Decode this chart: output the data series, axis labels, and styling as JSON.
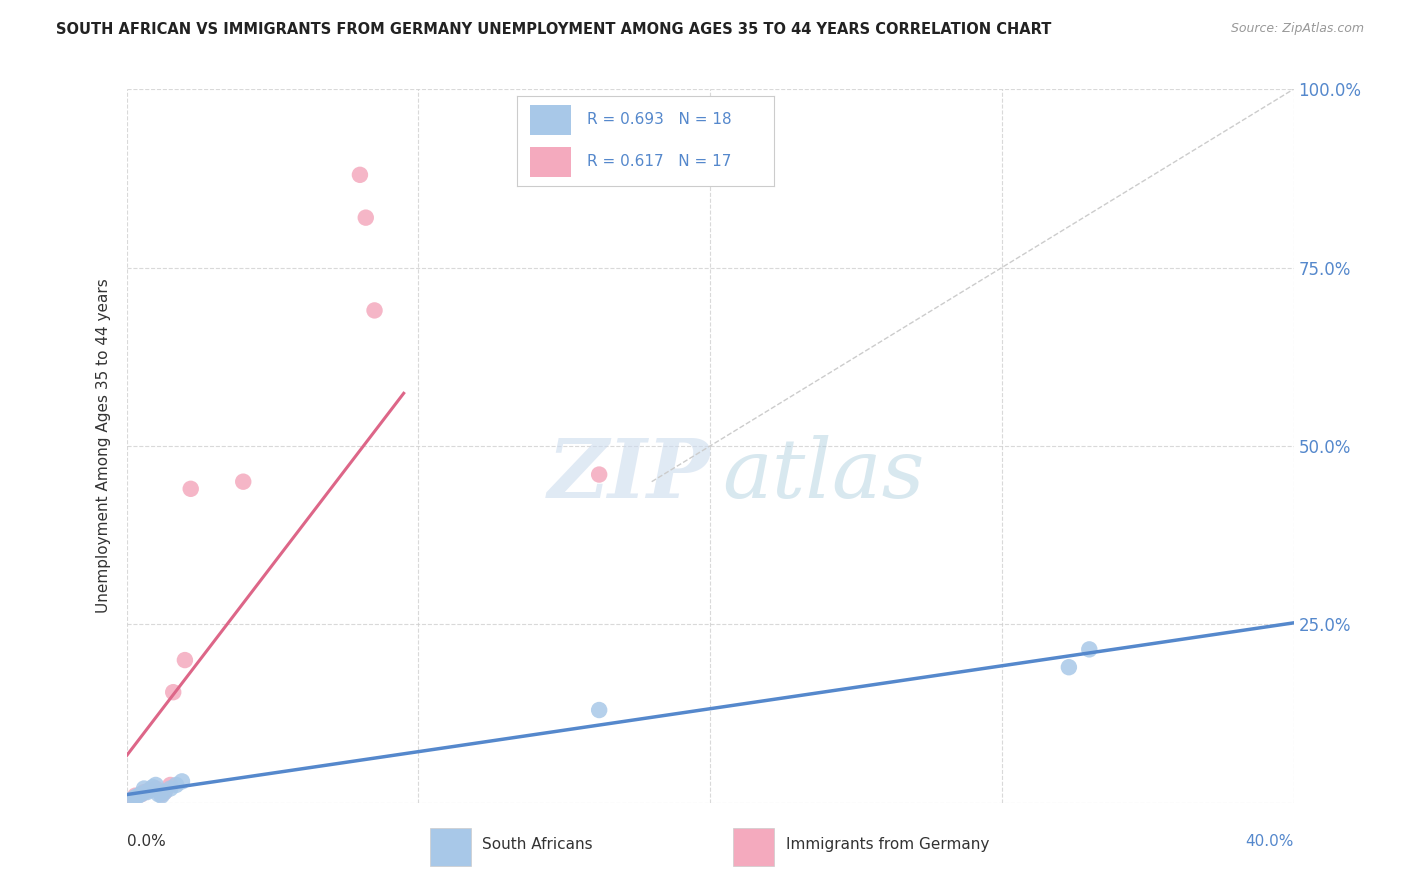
{
  "title": "SOUTH AFRICAN VS IMMIGRANTS FROM GERMANY UNEMPLOYMENT AMONG AGES 35 TO 44 YEARS CORRELATION CHART",
  "source": "Source: ZipAtlas.com",
  "ylabel": "Unemployment Among Ages 35 to 44 years",
  "background_color": "#ffffff",
  "plot_bg_color": "#ffffff",
  "r_blue": 0.693,
  "n_blue": 18,
  "r_pink": 0.617,
  "n_pink": 17,
  "blue_color": "#a8c8e8",
  "pink_color": "#f4aabe",
  "blue_line_color": "#5588cc",
  "pink_line_color": "#dd6688",
  "diag_line_color": "#cccccc",
  "tick_color": "#5588cc",
  "xmin": 0.0,
  "xmax": 0.4,
  "ymin": 0.0,
  "ymax": 1.0,
  "yticks": [
    0.0,
    0.25,
    0.5,
    0.75,
    1.0
  ],
  "ytick_labels": [
    "",
    "25.0%",
    "50.0%",
    "75.0%",
    "100.0%"
  ],
  "xtick_positions": [
    0.0,
    0.1,
    0.2,
    0.3,
    0.4
  ],
  "blue_scatter_x": [
    0.002,
    0.003,
    0.004,
    0.005,
    0.006,
    0.007,
    0.008,
    0.009,
    0.01,
    0.011,
    0.012,
    0.013,
    0.015,
    0.017,
    0.019,
    0.162,
    0.323,
    0.33
  ],
  "blue_scatter_y": [
    0.005,
    0.008,
    0.01,
    0.012,
    0.02,
    0.015,
    0.018,
    0.022,
    0.025,
    0.012,
    0.01,
    0.015,
    0.02,
    0.025,
    0.03,
    0.13,
    0.19,
    0.215
  ],
  "pink_scatter_x": [
    0.002,
    0.003,
    0.005,
    0.006,
    0.008,
    0.01,
    0.012,
    0.013,
    0.015,
    0.016,
    0.02,
    0.022,
    0.04,
    0.08,
    0.082,
    0.085,
    0.162
  ],
  "pink_scatter_y": [
    0.005,
    0.01,
    0.012,
    0.015,
    0.018,
    0.02,
    0.012,
    0.015,
    0.025,
    0.155,
    0.2,
    0.44,
    0.45,
    0.88,
    0.82,
    0.69,
    0.46
  ],
  "legend_labels_blue": "South Africans",
  "legend_labels_pink": "Immigrants from Germany"
}
